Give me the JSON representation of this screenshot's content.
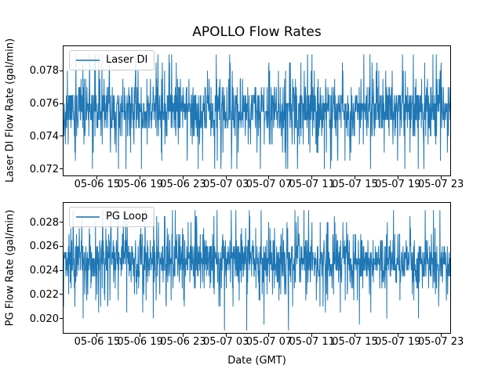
{
  "figure": {
    "title": "APOLLO Flow Rates",
    "xlabel": "Date (GMT)",
    "background": "#ffffff",
    "accent_color": "#1f77b4"
  },
  "chart_data": [
    {
      "type": "line",
      "ylabel": "Laser DI Flow Rate (gal/min)",
      "legend": {
        "label": "Laser DI",
        "position": "upper left"
      },
      "color": "#1f77b4",
      "grid": false,
      "x_tick_labels": [
        "05-06 15",
        "05-06 19",
        "05-06 23",
        "05-07 03",
        "05-07 07",
        "05-07 11",
        "05-07 15",
        "05-07 19",
        "05-07 23"
      ],
      "x_tick_hours": [
        0,
        4,
        8,
        12,
        16,
        20,
        24,
        28,
        32
      ],
      "xlim_hours": [
        -3.13,
        32.87
      ],
      "y_ticks": [
        0.072,
        0.074,
        0.076,
        0.078
      ],
      "y_tick_labels": [
        "0.072",
        "0.074",
        "0.076",
        "0.078"
      ],
      "ylim": [
        0.0716,
        0.0795
      ],
      "series": {
        "name": "Laser DI",
        "points": 1500,
        "seed": 11,
        "center": 0.07555,
        "band_sigma": 0.0008,
        "tail_sigma": 0.002,
        "tail_fraction": 0.25,
        "min": 0.072,
        "max": 0.079,
        "quantize_step": 0.0005
      }
    },
    {
      "type": "line",
      "ylabel": "PG Flow Rate (gal/min)",
      "legend": {
        "label": "PG Loop",
        "position": "upper left"
      },
      "color": "#1f77b4",
      "grid": false,
      "x_tick_labels": [
        "05-06 15",
        "05-06 19",
        "05-06 23",
        "05-07 03",
        "05-07 07",
        "05-07 11",
        "05-07 15",
        "05-07 19",
        "05-07 23"
      ],
      "x_tick_hours": [
        0,
        4,
        8,
        12,
        16,
        20,
        24,
        28,
        32
      ],
      "xlim_hours": [
        -3.13,
        32.87
      ],
      "y_ticks": [
        0.02,
        0.022,
        0.024,
        0.026,
        0.028
      ],
      "y_tick_labels": [
        "0.020",
        "0.022",
        "0.024",
        "0.026",
        "0.028"
      ],
      "ylim": [
        0.0188,
        0.0296
      ],
      "series": {
        "name": "PG Loop",
        "points": 1500,
        "seed": 23,
        "center": 0.02475,
        "band_sigma": 0.0009,
        "tail_sigma": 0.0025,
        "tail_fraction": 0.25,
        "min": 0.019,
        "max": 0.029,
        "quantize_step": 0.0005
      }
    }
  ]
}
